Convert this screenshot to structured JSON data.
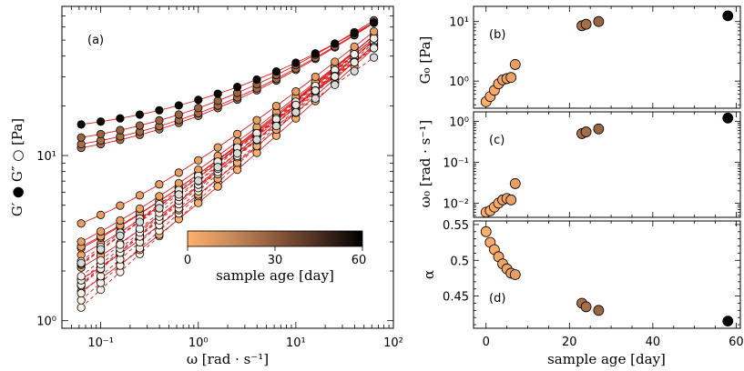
{
  "chart_data": [
    {
      "panel": "(a)",
      "type": "scatter",
      "xlabel": "ω [rad · s⁻¹]",
      "ylabel": "G′ ● G″ ○ [Pa]",
      "xscale": "log",
      "yscale": "log",
      "xlim": [
        0.04,
        100
      ],
      "ylim": [
        0.9,
        80
      ],
      "x_ticks": [
        "10⁻¹",
        "10⁰",
        "10¹",
        "10²"
      ],
      "y_ticks": [
        "10⁰",
        "10¹"
      ],
      "omega": [
        0.063,
        0.1,
        0.158,
        0.251,
        0.398,
        0.631,
        1.0,
        1.585,
        2.512,
        3.981,
        6.31,
        10.0,
        15.85,
        25.12,
        39.81,
        63.1
      ],
      "ages": [
        0,
        1,
        2,
        3,
        4,
        5,
        6,
        7,
        23,
        24,
        27,
        58
      ],
      "G0": [
        0.45,
        0.55,
        0.7,
        0.9,
        1.05,
        1.1,
        1.15,
        1.9,
        8.5,
        9.0,
        10.0,
        12.5
      ],
      "omega0": [
        0.006,
        0.0065,
        0.008,
        0.01,
        0.012,
        0.013,
        0.012,
        0.03,
        0.5,
        0.55,
        0.65,
        1.2
      ],
      "alpha": [
        0.54,
        0.525,
        0.515,
        0.505,
        0.495,
        0.488,
        0.482,
        0.48,
        0.44,
        0.435,
        0.43,
        0.415
      ],
      "colorbar": {
        "label": "sample age [day]",
        "ticks": [
          "0",
          "30",
          "60"
        ],
        "range": [
          0,
          60
        ],
        "colormap": [
          "#ffb06a",
          "#c98a5c",
          "#8e5a3c",
          "#4a2e20",
          "#000000"
        ]
      },
      "grid": false
    },
    {
      "panel": "(b)",
      "type": "scatter",
      "xlabel": "",
      "ylabel": "G₀ [Pa]",
      "yscale": "log",
      "ylim": [
        0.35,
        18
      ],
      "y_ticks": [
        "10⁰",
        "10¹"
      ],
      "x": [
        0,
        1,
        2,
        3,
        4,
        5,
        6,
        7,
        23,
        24,
        27,
        58
      ],
      "y": [
        0.45,
        0.55,
        0.7,
        0.9,
        1.05,
        1.1,
        1.15,
        1.9,
        8.5,
        9.0,
        10.0,
        12.5
      ]
    },
    {
      "panel": "(c)",
      "type": "scatter",
      "xlabel": "",
      "ylabel": "ω₀ [rad · s⁻¹]",
      "yscale": "log",
      "ylim": [
        0.0045,
        1.7
      ],
      "y_ticks": [
        "10⁻²",
        "10⁻¹",
        "10⁰"
      ],
      "x": [
        0,
        1,
        2,
        3,
        4,
        5,
        6,
        7,
        23,
        24,
        27,
        58
      ],
      "y": [
        0.006,
        0.0065,
        0.008,
        0.01,
        0.012,
        0.013,
        0.012,
        0.03,
        0.5,
        0.55,
        0.65,
        1.2
      ]
    },
    {
      "panel": "(d)",
      "type": "scatter",
      "xlabel": "sample age [day]",
      "ylabel": "α",
      "ylim": [
        0.405,
        0.555
      ],
      "y_ticks": [
        "0.45",
        "0.5",
        "0.55"
      ],
      "y_tick_values": [
        0.45,
        0.5,
        0.55
      ],
      "xlim": [
        -3,
        61
      ],
      "x_ticks": [
        "0",
        "20",
        "40",
        "60"
      ],
      "x_tick_values": [
        0,
        20,
        40,
        60
      ],
      "x": [
        0,
        1,
        2,
        3,
        4,
        5,
        6,
        7,
        23,
        24,
        27,
        58
      ],
      "y": [
        0.54,
        0.525,
        0.515,
        0.505,
        0.495,
        0.488,
        0.482,
        0.48,
        0.44,
        0.435,
        0.43,
        0.415
      ]
    }
  ]
}
